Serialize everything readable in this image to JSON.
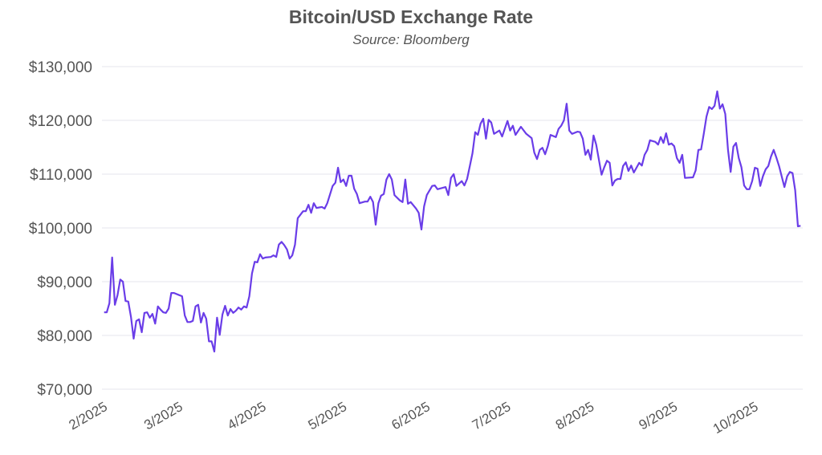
{
  "chart_data": {
    "type": "line",
    "title": "Bitcoin/USD Exchange Rate",
    "subtitle": "Source: Bloomberg",
    "xlabel": "",
    "ylabel": "",
    "ylim": [
      70000,
      130000
    ],
    "yticks": [
      70000,
      80000,
      90000,
      100000,
      110000,
      120000,
      130000
    ],
    "ytick_labels": [
      "$70,000",
      "$80,000",
      "$90,000",
      "$100,000",
      "$110,000",
      "$120,000",
      "$130,000"
    ],
    "xticks": [
      "2025-02-01",
      "2025-03-01",
      "2025-04-01",
      "2025-05-01",
      "2025-06-01",
      "2025-07-01",
      "2025-08-01",
      "2025-09-01",
      "2025-10-01"
    ],
    "xtick_labels": [
      "2/2025",
      "3/2025",
      "4/2025",
      "5/2025",
      "6/2025",
      "7/2025",
      "8/2025",
      "9/2025",
      "10/2025"
    ],
    "grid": "horizontal",
    "line_color": "#6a3de8",
    "series": [
      {
        "points": [
          [
            "2025-01-31",
            84300
          ],
          [
            "2025-02-01",
            84300
          ],
          [
            "2025-02-02",
            86000
          ],
          [
            "2025-02-03",
            94500
          ],
          [
            "2025-02-04",
            85700
          ],
          [
            "2025-02-05",
            87500
          ],
          [
            "2025-02-06",
            90400
          ],
          [
            "2025-02-07",
            90000
          ],
          [
            "2025-02-08",
            86400
          ],
          [
            "2025-02-09",
            86300
          ],
          [
            "2025-02-10",
            83400
          ],
          [
            "2025-02-11",
            79400
          ],
          [
            "2025-02-12",
            82700
          ],
          [
            "2025-02-13",
            83000
          ],
          [
            "2025-02-14",
            80600
          ],
          [
            "2025-02-15",
            84200
          ],
          [
            "2025-02-16",
            84300
          ],
          [
            "2025-02-17",
            83300
          ],
          [
            "2025-02-18",
            84000
          ],
          [
            "2025-02-19",
            82200
          ],
          [
            "2025-02-20",
            85400
          ],
          [
            "2025-02-21",
            84800
          ],
          [
            "2025-02-22",
            84300
          ],
          [
            "2025-02-23",
            84200
          ],
          [
            "2025-02-24",
            85000
          ],
          [
            "2025-02-25",
            87900
          ],
          [
            "2025-02-26",
            87900
          ],
          [
            "2025-02-28",
            87500
          ],
          [
            "2025-03-01",
            87300
          ],
          [
            "2025-03-02",
            83700
          ],
          [
            "2025-03-03",
            82500
          ],
          [
            "2025-03-04",
            82500
          ],
          [
            "2025-03-05",
            82700
          ],
          [
            "2025-03-06",
            85400
          ],
          [
            "2025-03-07",
            85700
          ],
          [
            "2025-03-08",
            82400
          ],
          [
            "2025-03-09",
            84200
          ],
          [
            "2025-03-10",
            83100
          ],
          [
            "2025-03-11",
            78900
          ],
          [
            "2025-03-12",
            78900
          ],
          [
            "2025-03-13",
            77000
          ],
          [
            "2025-03-14",
            83300
          ],
          [
            "2025-03-15",
            80100
          ],
          [
            "2025-03-16",
            83900
          ],
          [
            "2025-03-17",
            85500
          ],
          [
            "2025-03-18",
            83700
          ],
          [
            "2025-03-19",
            84900
          ],
          [
            "2025-03-20",
            84200
          ],
          [
            "2025-03-21",
            84600
          ],
          [
            "2025-03-22",
            85200
          ],
          [
            "2025-03-23",
            84800
          ],
          [
            "2025-03-24",
            85400
          ],
          [
            "2025-03-25",
            85200
          ],
          [
            "2025-03-26",
            87300
          ],
          [
            "2025-03-27",
            91500
          ],
          [
            "2025-03-28",
            93700
          ],
          [
            "2025-03-29",
            93600
          ],
          [
            "2025-03-30",
            95100
          ],
          [
            "2025-03-31",
            94300
          ],
          [
            "2025-04-01",
            94500
          ],
          [
            "2025-04-03",
            94600
          ],
          [
            "2025-04-04",
            94900
          ],
          [
            "2025-04-05",
            94600
          ],
          [
            "2025-04-06",
            96900
          ],
          [
            "2025-04-07",
            97400
          ],
          [
            "2025-04-08",
            96800
          ],
          [
            "2025-04-09",
            96000
          ],
          [
            "2025-04-10",
            94300
          ],
          [
            "2025-04-11",
            94900
          ],
          [
            "2025-04-12",
            96900
          ],
          [
            "2025-04-13",
            101800
          ],
          [
            "2025-04-15",
            103100
          ],
          [
            "2025-04-16",
            103100
          ],
          [
            "2025-04-17",
            104300
          ],
          [
            "2025-04-18",
            102800
          ],
          [
            "2025-04-19",
            104600
          ],
          [
            "2025-04-20",
            103700
          ],
          [
            "2025-04-21",
            103800
          ],
          [
            "2025-04-22",
            103900
          ],
          [
            "2025-04-23",
            103600
          ],
          [
            "2025-04-24",
            104600
          ],
          [
            "2025-04-26",
            107800
          ],
          [
            "2025-04-27",
            108400
          ],
          [
            "2025-04-28",
            111200
          ],
          [
            "2025-04-29",
            108500
          ],
          [
            "2025-04-30",
            109000
          ],
          [
            "2025-05-01",
            107800
          ],
          [
            "2025-05-02",
            109700
          ],
          [
            "2025-05-03",
            109700
          ],
          [
            "2025-05-04",
            107300
          ],
          [
            "2025-05-05",
            106300
          ],
          [
            "2025-05-06",
            104600
          ],
          [
            "2025-05-08",
            104900
          ],
          [
            "2025-05-09",
            104900
          ],
          [
            "2025-05-10",
            105800
          ],
          [
            "2025-05-11",
            104800
          ],
          [
            "2025-05-12",
            100600
          ],
          [
            "2025-05-13",
            104600
          ],
          [
            "2025-05-14",
            106000
          ],
          [
            "2025-05-15",
            106300
          ],
          [
            "2025-05-16",
            109000
          ],
          [
            "2025-05-17",
            110000
          ],
          [
            "2025-05-18",
            109000
          ],
          [
            "2025-05-19",
            106100
          ],
          [
            "2025-05-21",
            105100
          ],
          [
            "2025-05-22",
            104800
          ],
          [
            "2025-05-23",
            109000
          ],
          [
            "2025-05-24",
            104500
          ],
          [
            "2025-05-25",
            104800
          ],
          [
            "2025-05-27",
            103600
          ],
          [
            "2025-05-28",
            102800
          ],
          [
            "2025-05-29",
            99700
          ],
          [
            "2025-05-30",
            104000
          ],
          [
            "2025-05-31",
            106100
          ],
          [
            "2025-06-02",
            107800
          ],
          [
            "2025-06-03",
            107900
          ],
          [
            "2025-06-04",
            107200
          ],
          [
            "2025-06-07",
            107600
          ],
          [
            "2025-06-08",
            106100
          ],
          [
            "2025-06-09",
            109300
          ],
          [
            "2025-06-10",
            110000
          ],
          [
            "2025-06-11",
            107800
          ],
          [
            "2025-06-13",
            108700
          ],
          [
            "2025-06-14",
            107900
          ],
          [
            "2025-06-15",
            109100
          ],
          [
            "2025-06-16",
            111500
          ],
          [
            "2025-06-17",
            113900
          ],
          [
            "2025-06-18",
            117800
          ],
          [
            "2025-06-19",
            117300
          ],
          [
            "2025-06-20",
            119400
          ],
          [
            "2025-06-21",
            120300
          ],
          [
            "2025-06-22",
            116600
          ],
          [
            "2025-06-23",
            120100
          ],
          [
            "2025-06-24",
            119600
          ],
          [
            "2025-06-25",
            117500
          ],
          [
            "2025-06-27",
            118100
          ],
          [
            "2025-06-28",
            117000
          ],
          [
            "2025-06-30",
            119900
          ],
          [
            "2025-07-01",
            118100
          ],
          [
            "2025-07-02",
            119000
          ],
          [
            "2025-07-03",
            117300
          ],
          [
            "2025-07-05",
            118800
          ],
          [
            "2025-07-07",
            117500
          ],
          [
            "2025-07-09",
            116700
          ],
          [
            "2025-07-10",
            114000
          ],
          [
            "2025-07-11",
            112800
          ],
          [
            "2025-07-12",
            114500
          ],
          [
            "2025-07-13",
            114900
          ],
          [
            "2025-07-14",
            113700
          ],
          [
            "2025-07-15",
            115200
          ],
          [
            "2025-07-16",
            117300
          ],
          [
            "2025-07-18",
            116900
          ],
          [
            "2025-07-19",
            118400
          ],
          [
            "2025-07-20",
            119000
          ],
          [
            "2025-07-21",
            120000
          ],
          [
            "2025-07-22",
            123100
          ],
          [
            "2025-07-23",
            118100
          ],
          [
            "2025-07-24",
            117500
          ],
          [
            "2025-07-26",
            117900
          ],
          [
            "2025-07-27",
            117800
          ],
          [
            "2025-07-28",
            116600
          ],
          [
            "2025-07-29",
            113600
          ],
          [
            "2025-07-30",
            114500
          ],
          [
            "2025-07-31",
            112700
          ],
          [
            "2025-08-01",
            117200
          ],
          [
            "2025-08-02",
            115500
          ],
          [
            "2025-08-04",
            109900
          ],
          [
            "2025-08-05",
            111300
          ],
          [
            "2025-08-06",
            112500
          ],
          [
            "2025-08-07",
            112100
          ],
          [
            "2025-08-08",
            107900
          ],
          [
            "2025-08-09",
            108800
          ],
          [
            "2025-08-10",
            109100
          ],
          [
            "2025-08-11",
            109100
          ],
          [
            "2025-08-12",
            111500
          ],
          [
            "2025-08-13",
            112200
          ],
          [
            "2025-08-14",
            110600
          ],
          [
            "2025-08-15",
            111600
          ],
          [
            "2025-08-16",
            110300
          ],
          [
            "2025-08-18",
            112100
          ],
          [
            "2025-08-19",
            111600
          ],
          [
            "2025-08-20",
            113600
          ],
          [
            "2025-08-21",
            114500
          ],
          [
            "2025-08-22",
            116300
          ],
          [
            "2025-08-24",
            116000
          ],
          [
            "2025-08-25",
            115500
          ],
          [
            "2025-08-26",
            116900
          ],
          [
            "2025-08-27",
            115800
          ],
          [
            "2025-08-28",
            117600
          ],
          [
            "2025-08-29",
            115500
          ],
          [
            "2025-08-30",
            115700
          ],
          [
            "2025-08-31",
            115200
          ],
          [
            "2025-09-01",
            113000
          ],
          [
            "2025-09-02",
            112100
          ],
          [
            "2025-09-03",
            113600
          ],
          [
            "2025-09-04",
            109300
          ],
          [
            "2025-09-07",
            109400
          ],
          [
            "2025-09-08",
            110700
          ],
          [
            "2025-09-09",
            114500
          ],
          [
            "2025-09-10",
            114600
          ],
          [
            "2025-09-11",
            117500
          ],
          [
            "2025-09-12",
            120700
          ],
          [
            "2025-09-13",
            122500
          ],
          [
            "2025-09-14",
            122100
          ],
          [
            "2025-09-15",
            122700
          ],
          [
            "2025-09-16",
            125400
          ],
          [
            "2025-09-17",
            122200
          ],
          [
            "2025-09-18",
            123000
          ],
          [
            "2025-09-19",
            121200
          ],
          [
            "2025-09-20",
            114500
          ],
          [
            "2025-09-21",
            110400
          ],
          [
            "2025-09-22",
            115100
          ],
          [
            "2025-09-23",
            115800
          ],
          [
            "2025-09-24",
            113000
          ],
          [
            "2025-09-25",
            111300
          ],
          [
            "2025-09-26",
            107900
          ],
          [
            "2025-09-27",
            107200
          ],
          [
            "2025-09-28",
            107200
          ],
          [
            "2025-09-29",
            108700
          ],
          [
            "2025-09-30",
            111200
          ],
          [
            "2025-10-01",
            111000
          ],
          [
            "2025-10-02",
            107800
          ],
          [
            "2025-10-03",
            109600
          ],
          [
            "2025-10-04",
            110900
          ],
          [
            "2025-10-05",
            111500
          ],
          [
            "2025-10-06",
            113300
          ],
          [
            "2025-10-07",
            114500
          ],
          [
            "2025-10-08",
            113100
          ],
          [
            "2025-10-09",
            111500
          ],
          [
            "2025-10-11",
            107600
          ],
          [
            "2025-10-12",
            109600
          ],
          [
            "2025-10-13",
            110400
          ],
          [
            "2025-10-14",
            110200
          ],
          [
            "2025-10-15",
            107000
          ],
          [
            "2025-10-16",
            100300
          ],
          [
            "2025-10-17",
            100400
          ]
        ]
      }
    ]
  }
}
